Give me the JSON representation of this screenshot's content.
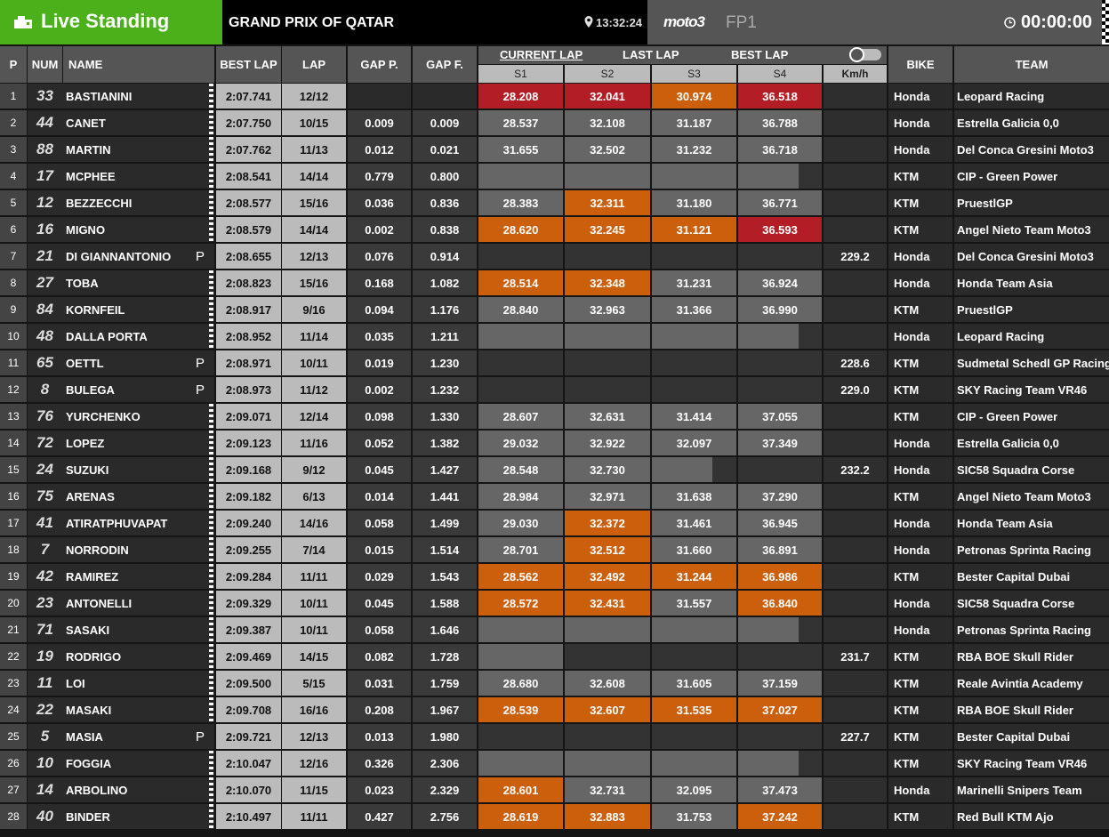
{
  "header": {
    "live": "Live Standing",
    "event": "GRAND PRIX OF QATAR",
    "time": "13:32:24",
    "series": "moto3",
    "session": "FP1",
    "clock": "00:00:00"
  },
  "columns": {
    "p": "P",
    "num": "NUM",
    "name": "NAME",
    "best": "BEST LAP",
    "lap": "LAP",
    "gap_p": "GAP P.",
    "gap_f": "GAP F.",
    "bike": "BIKE",
    "team": "TEAM"
  },
  "tabs": [
    "CURRENT LAP",
    "LAST LAP",
    "BEST LAP"
  ],
  "sectors": [
    "S1",
    "S2",
    "S3",
    "S4"
  ],
  "speed": "Km/h",
  "rows": [
    {
      "p": "1",
      "num": "33",
      "name": "BASTIANINI",
      "pit": null,
      "best": "2:07.741",
      "lap": "12/12",
      "gap_p": null,
      "gap_f": null,
      "sectors": [
        {
          "value": "28.208",
          "state": "red"
        },
        {
          "value": "32.041",
          "state": "red"
        },
        {
          "value": "30.974",
          "state": "orange"
        },
        {
          "value": "36.518",
          "state": "red"
        }
      ],
      "kmh": null,
      "bike": "Honda",
      "team": "Leopard Racing"
    },
    {
      "p": "2",
      "num": "44",
      "name": "CANET",
      "pit": null,
      "best": "2:07.750",
      "lap": "10/15",
      "gap_p": "0.009",
      "gap_f": "0.009",
      "sectors": [
        {
          "value": "28.537",
          "state": "grey"
        },
        {
          "value": "32.108",
          "state": "grey"
        },
        {
          "value": "31.187",
          "state": "grey"
        },
        {
          "value": "36.788",
          "state": "grey"
        }
      ],
      "kmh": null,
      "bike": "Honda",
      "team": "Estrella Galicia 0,0"
    },
    {
      "p": "3",
      "num": "88",
      "name": "MARTIN",
      "pit": null,
      "best": "2:07.762",
      "lap": "11/13",
      "gap_p": "0.012",
      "gap_f": "0.021",
      "sectors": [
        {
          "value": "31.655",
          "state": "grey"
        },
        {
          "value": "32.502",
          "state": "grey"
        },
        {
          "value": "31.232",
          "state": "grey"
        },
        {
          "value": "36.718",
          "state": "grey"
        }
      ],
      "kmh": null,
      "bike": "Honda",
      "team": "Del Conca Gresini Moto3"
    },
    {
      "p": "4",
      "num": "17",
      "name": "MCPHEE",
      "pit": null,
      "best": "2:08.541",
      "lap": "14/14",
      "gap_p": "0.779",
      "gap_f": "0.800",
      "sectors": [
        {
          "value": null,
          "state": "grey"
        },
        {
          "value": null,
          "state": "grey"
        },
        {
          "value": null,
          "state": "grey"
        },
        {
          "value": null,
          "state": "partial"
        }
      ],
      "kmh": null,
      "bike": "KTM",
      "team": "CIP - Green Power"
    },
    {
      "p": "5",
      "num": "12",
      "name": "BEZZECCHI",
      "pit": null,
      "best": "2:08.577",
      "lap": "15/16",
      "gap_p": "0.036",
      "gap_f": "0.836",
      "sectors": [
        {
          "value": "28.383",
          "state": "grey"
        },
        {
          "value": "32.311",
          "state": "orange"
        },
        {
          "value": "31.180",
          "state": "grey"
        },
        {
          "value": "36.771",
          "state": "grey"
        }
      ],
      "kmh": null,
      "bike": "KTM",
      "team": "PruestlGP"
    },
    {
      "p": "6",
      "num": "16",
      "name": "MIGNO",
      "pit": null,
      "best": "2:08.579",
      "lap": "14/14",
      "gap_p": "0.002",
      "gap_f": "0.838",
      "sectors": [
        {
          "value": "28.620",
          "state": "orange"
        },
        {
          "value": "32.245",
          "state": "orange"
        },
        {
          "value": "31.121",
          "state": "orange"
        },
        {
          "value": "36.593",
          "state": "red"
        }
      ],
      "kmh": null,
      "bike": "KTM",
      "team": "Angel Nieto Team Moto3"
    },
    {
      "p": "7",
      "num": "21",
      "name": "DI GIANNANTONIO",
      "pit": "P",
      "best": "2:08.655",
      "lap": "12/13",
      "gap_p": "0.076",
      "gap_f": "0.914",
      "sectors": [
        {
          "value": null,
          "state": "dark"
        },
        {
          "value": null,
          "state": "dark"
        },
        {
          "value": null,
          "state": "dark"
        },
        {
          "value": null,
          "state": "dark"
        }
      ],
      "kmh": "229.2",
      "bike": "Honda",
      "team": "Del Conca Gresini Moto3"
    },
    {
      "p": "8",
      "num": "27",
      "name": "TOBA",
      "pit": null,
      "best": "2:08.823",
      "lap": "15/16",
      "gap_p": "0.168",
      "gap_f": "1.082",
      "sectors": [
        {
          "value": "28.514",
          "state": "orange"
        },
        {
          "value": "32.348",
          "state": "orange"
        },
        {
          "value": "31.231",
          "state": "grey"
        },
        {
          "value": "36.924",
          "state": "grey"
        }
      ],
      "kmh": null,
      "bike": "Honda",
      "team": "Honda Team Asia"
    },
    {
      "p": "9",
      "num": "84",
      "name": "KORNFEIL",
      "pit": null,
      "best": "2:08.917",
      "lap": "9/16",
      "gap_p": "0.094",
      "gap_f": "1.176",
      "sectors": [
        {
          "value": "28.840",
          "state": "grey"
        },
        {
          "value": "32.963",
          "state": "grey"
        },
        {
          "value": "31.366",
          "state": "grey"
        },
        {
          "value": "36.990",
          "state": "grey"
        }
      ],
      "kmh": null,
      "bike": "KTM",
      "team": "PruestlGP"
    },
    {
      "p": "10",
      "num": "48",
      "name": "DALLA PORTA",
      "pit": null,
      "best": "2:08.952",
      "lap": "11/14",
      "gap_p": "0.035",
      "gap_f": "1.211",
      "sectors": [
        {
          "value": null,
          "state": "grey"
        },
        {
          "value": null,
          "state": "grey"
        },
        {
          "value": null,
          "state": "grey"
        },
        {
          "value": null,
          "state": "partial"
        }
      ],
      "kmh": null,
      "bike": "Honda",
      "team": "Leopard Racing"
    },
    {
      "p": "11",
      "num": "65",
      "name": "OETTL",
      "pit": "P",
      "best": "2:08.971",
      "lap": "10/11",
      "gap_p": "0.019",
      "gap_f": "1.230",
      "sectors": [
        {
          "value": null,
          "state": "dark"
        },
        {
          "value": null,
          "state": "dark"
        },
        {
          "value": null,
          "state": "dark"
        },
        {
          "value": null,
          "state": "dark"
        }
      ],
      "kmh": "228.6",
      "bike": "KTM",
      "team": "Sudmetal Schedl GP Racing"
    },
    {
      "p": "12",
      "num": "8",
      "name": "BULEGA",
      "pit": "P",
      "best": "2:08.973",
      "lap": "11/12",
      "gap_p": "0.002",
      "gap_f": "1.232",
      "sectors": [
        {
          "value": null,
          "state": "dark"
        },
        {
          "value": null,
          "state": "dark"
        },
        {
          "value": null,
          "state": "dark"
        },
        {
          "value": null,
          "state": "dark"
        }
      ],
      "kmh": "229.0",
      "bike": "KTM",
      "team": "SKY Racing Team VR46"
    },
    {
      "p": "13",
      "num": "76",
      "name": "YURCHENKO",
      "pit": null,
      "best": "2:09.071",
      "lap": "12/14",
      "gap_p": "0.098",
      "gap_f": "1.330",
      "sectors": [
        {
          "value": "28.607",
          "state": "grey"
        },
        {
          "value": "32.631",
          "state": "grey"
        },
        {
          "value": "31.414",
          "state": "grey"
        },
        {
          "value": "37.055",
          "state": "grey"
        }
      ],
      "kmh": null,
      "bike": "KTM",
      "team": "CIP - Green Power"
    },
    {
      "p": "14",
      "num": "72",
      "name": "LOPEZ",
      "pit": null,
      "best": "2:09.123",
      "lap": "11/16",
      "gap_p": "0.052",
      "gap_f": "1.382",
      "sectors": [
        {
          "value": "29.032",
          "state": "grey"
        },
        {
          "value": "32.922",
          "state": "grey"
        },
        {
          "value": "32.097",
          "state": "grey"
        },
        {
          "value": "37.349",
          "state": "grey"
        }
      ],
      "kmh": null,
      "bike": "Honda",
      "team": "Estrella Galicia 0,0"
    },
    {
      "p": "15",
      "num": "24",
      "name": "SUZUKI",
      "pit": null,
      "best": "2:09.168",
      "lap": "9/12",
      "gap_p": "0.045",
      "gap_f": "1.427",
      "sectors": [
        {
          "value": "28.548",
          "state": "grey"
        },
        {
          "value": "32.730",
          "state": "grey"
        },
        {
          "value": null,
          "state": "partial"
        },
        {
          "value": null,
          "state": "dark"
        }
      ],
      "kmh": "232.2",
      "bike": "Honda",
      "team": "SIC58 Squadra Corse"
    },
    {
      "p": "16",
      "num": "75",
      "name": "ARENAS",
      "pit": null,
      "best": "2:09.182",
      "lap": "6/13",
      "gap_p": "0.014",
      "gap_f": "1.441",
      "sectors": [
        {
          "value": "28.984",
          "state": "grey"
        },
        {
          "value": "32.971",
          "state": "grey"
        },
        {
          "value": "31.638",
          "state": "grey"
        },
        {
          "value": "37.290",
          "state": "grey"
        }
      ],
      "kmh": null,
      "bike": "KTM",
      "team": "Angel Nieto Team Moto3"
    },
    {
      "p": "17",
      "num": "41",
      "name": "ATIRATPHUVAPAT",
      "pit": null,
      "best": "2:09.240",
      "lap": "14/16",
      "gap_p": "0.058",
      "gap_f": "1.499",
      "sectors": [
        {
          "value": "29.030",
          "state": "grey"
        },
        {
          "value": "32.372",
          "state": "orange"
        },
        {
          "value": "31.461",
          "state": "grey"
        },
        {
          "value": "36.945",
          "state": "grey"
        }
      ],
      "kmh": null,
      "bike": "Honda",
      "team": "Honda Team Asia"
    },
    {
      "p": "18",
      "num": "7",
      "name": "NORRODIN",
      "pit": null,
      "best": "2:09.255",
      "lap": "7/14",
      "gap_p": "0.015",
      "gap_f": "1.514",
      "sectors": [
        {
          "value": "28.701",
          "state": "grey"
        },
        {
          "value": "32.512",
          "state": "orange"
        },
        {
          "value": "31.660",
          "state": "grey"
        },
        {
          "value": "36.891",
          "state": "grey"
        }
      ],
      "kmh": null,
      "bike": "Honda",
      "team": "Petronas Sprinta Racing"
    },
    {
      "p": "19",
      "num": "42",
      "name": "RAMIREZ",
      "pit": null,
      "best": "2:09.284",
      "lap": "11/11",
      "gap_p": "0.029",
      "gap_f": "1.543",
      "sectors": [
        {
          "value": "28.562",
          "state": "orange"
        },
        {
          "value": "32.492",
          "state": "orange"
        },
        {
          "value": "31.244",
          "state": "orange"
        },
        {
          "value": "36.986",
          "state": "orange"
        }
      ],
      "kmh": null,
      "bike": "KTM",
      "team": "Bester Capital Dubai"
    },
    {
      "p": "20",
      "num": "23",
      "name": "ANTONELLI",
      "pit": null,
      "best": "2:09.329",
      "lap": "10/11",
      "gap_p": "0.045",
      "gap_f": "1.588",
      "sectors": [
        {
          "value": "28.572",
          "state": "orange"
        },
        {
          "value": "32.431",
          "state": "orange"
        },
        {
          "value": "31.557",
          "state": "grey"
        },
        {
          "value": "36.840",
          "state": "orange"
        }
      ],
      "kmh": null,
      "bike": "Honda",
      "team": "SIC58 Squadra Corse"
    },
    {
      "p": "21",
      "num": "71",
      "name": "SASAKI",
      "pit": null,
      "best": "2:09.387",
      "lap": "10/11",
      "gap_p": "0.058",
      "gap_f": "1.646",
      "sectors": [
        {
          "value": null,
          "state": "grey"
        },
        {
          "value": null,
          "state": "grey"
        },
        {
          "value": null,
          "state": "grey"
        },
        {
          "value": null,
          "state": "partial"
        }
      ],
      "kmh": null,
      "bike": "Honda",
      "team": "Petronas Sprinta Racing"
    },
    {
      "p": "22",
      "num": "19",
      "name": "RODRIGO",
      "pit": null,
      "best": "2:09.469",
      "lap": "14/15",
      "gap_p": "0.082",
      "gap_f": "1.728",
      "sectors": [
        {
          "value": null,
          "state": "grey"
        },
        {
          "value": null,
          "state": "dark"
        },
        {
          "value": null,
          "state": "dark"
        },
        {
          "value": null,
          "state": "dark"
        }
      ],
      "kmh": "231.7",
      "bike": "KTM",
      "team": "RBA BOE Skull Rider"
    },
    {
      "p": "23",
      "num": "11",
      "name": "LOI",
      "pit": null,
      "best": "2:09.500",
      "lap": "5/15",
      "gap_p": "0.031",
      "gap_f": "1.759",
      "sectors": [
        {
          "value": "28.680",
          "state": "grey"
        },
        {
          "value": "32.608",
          "state": "grey"
        },
        {
          "value": "31.605",
          "state": "grey"
        },
        {
          "value": "37.159",
          "state": "grey"
        }
      ],
      "kmh": null,
      "bike": "KTM",
      "team": "Reale Avintia Academy"
    },
    {
      "p": "24",
      "num": "22",
      "name": "MASAKI",
      "pit": null,
      "best": "2:09.708",
      "lap": "16/16",
      "gap_p": "0.208",
      "gap_f": "1.967",
      "sectors": [
        {
          "value": "28.539",
          "state": "orange"
        },
        {
          "value": "32.607",
          "state": "orange"
        },
        {
          "value": "31.535",
          "state": "orange"
        },
        {
          "value": "37.027",
          "state": "orange"
        }
      ],
      "kmh": null,
      "bike": "KTM",
      "team": "RBA BOE Skull Rider"
    },
    {
      "p": "25",
      "num": "5",
      "name": "MASIA",
      "pit": "P",
      "best": "2:09.721",
      "lap": "12/13",
      "gap_p": "0.013",
      "gap_f": "1.980",
      "sectors": [
        {
          "value": null,
          "state": "dark"
        },
        {
          "value": null,
          "state": "dark"
        },
        {
          "value": null,
          "state": "dark"
        },
        {
          "value": null,
          "state": "dark"
        }
      ],
      "kmh": "227.7",
      "bike": "KTM",
      "team": "Bester Capital Dubai"
    },
    {
      "p": "26",
      "num": "10",
      "name": "FOGGIA",
      "pit": null,
      "best": "2:10.047",
      "lap": "12/16",
      "gap_p": "0.326",
      "gap_f": "2.306",
      "sectors": [
        {
          "value": null,
          "state": "grey"
        },
        {
          "value": null,
          "state": "grey"
        },
        {
          "value": null,
          "state": "grey"
        },
        {
          "value": null,
          "state": "partial"
        }
      ],
      "kmh": null,
      "bike": "KTM",
      "team": "SKY Racing Team VR46"
    },
    {
      "p": "27",
      "num": "14",
      "name": "ARBOLINO",
      "pit": null,
      "best": "2:10.070",
      "lap": "11/15",
      "gap_p": "0.023",
      "gap_f": "2.329",
      "sectors": [
        {
          "value": "28.601",
          "state": "orange"
        },
        {
          "value": "32.731",
          "state": "grey"
        },
        {
          "value": "32.095",
          "state": "grey"
        },
        {
          "value": "37.473",
          "state": "grey"
        }
      ],
      "kmh": null,
      "bike": "Honda",
      "team": "Marinelli Snipers Team"
    },
    {
      "p": "28",
      "num": "40",
      "name": "BINDER",
      "pit": null,
      "best": "2:10.497",
      "lap": "11/11",
      "gap_p": "0.427",
      "gap_f": "2.756",
      "sectors": [
        {
          "value": "28.619",
          "state": "orange"
        },
        {
          "value": "32.883",
          "state": "orange"
        },
        {
          "value": "31.753",
          "state": "grey"
        },
        {
          "value": "37.242",
          "state": "orange"
        }
      ],
      "kmh": null,
      "bike": "KTM",
      "team": "Red Bull KTM Ajo"
    }
  ]
}
